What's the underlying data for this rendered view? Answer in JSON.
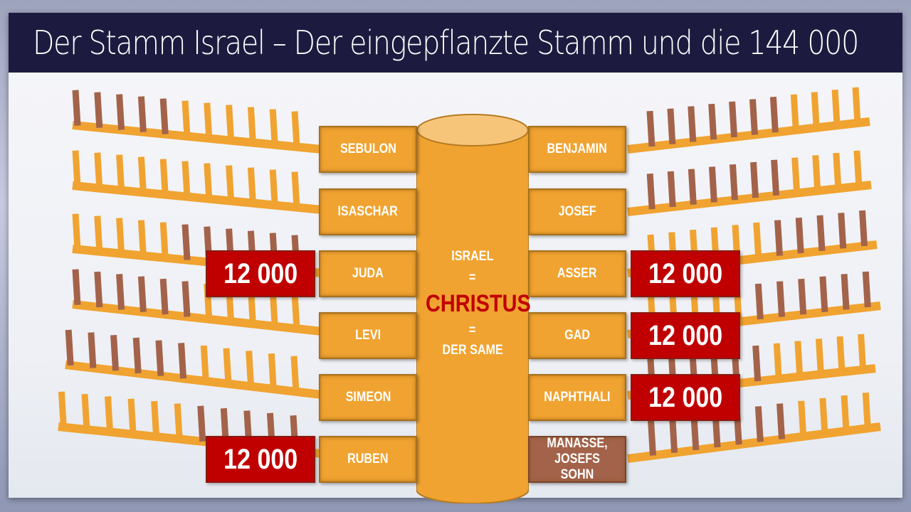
{
  "title": "Der Stamm Israel – Der eingepflanzte Stamm und die 144 000",
  "colors": {
    "orange": "#f0a330",
    "brown": "#a3634a",
    "red": "#c00000",
    "title_bg": "#1c1b3f"
  },
  "center": {
    "line1": "ISRAEL",
    "eq1": "=",
    "highlight": "CHRISTUS",
    "eq2": "=",
    "line2": "DER SAME"
  },
  "left_tribes": [
    "SEBULON",
    "ISASCHAR",
    "JUDA",
    "LEVI",
    "SIMEON",
    "RUBEN"
  ],
  "right_tribes": [
    "BENJAMIN",
    "JOSEF",
    "ASSER",
    "GAD",
    "NAPHTHALI",
    "MANASSE, JOSEFS SOHN"
  ],
  "counts": {
    "juda": "12 000",
    "ruben": "12 000",
    "asser": "12 000",
    "gad": "12 000",
    "naphthali": "12 000"
  }
}
